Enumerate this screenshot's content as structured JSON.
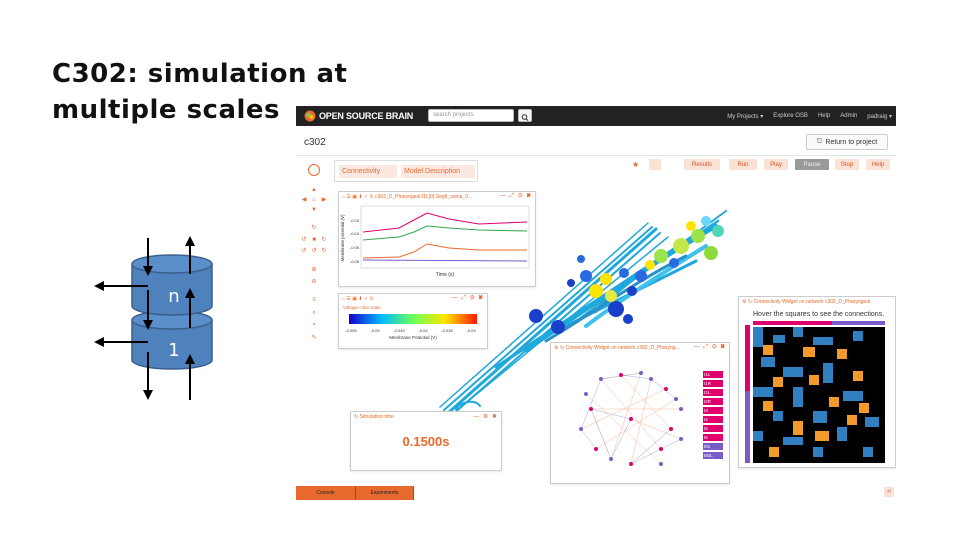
{
  "slide": {
    "title_line1": "C302: simulation at",
    "title_line2": "multiple scales",
    "diagram_labels": [
      "n",
      "1"
    ]
  },
  "app": {
    "brand": "OPEN SOURCE BRAIN",
    "search_placeholder": "search projects",
    "nav": [
      "My Projects ▾",
      "Explore OSB",
      "Help",
      "Admin",
      "padraig ▾"
    ],
    "project_title": "c302",
    "return_button": "Return to project",
    "tabs": [
      "Connectivity",
      "Model Description"
    ],
    "toolbar": {
      "results": "Results",
      "run": "Run",
      "play": "Play",
      "pause": "Pause",
      "stop": "Stop",
      "help": "Help"
    }
  },
  "plot_panel": {
    "title": "c302_D_Pharyngeal.I1L[0].SegII_soma_0...",
    "ylabel": "Membrane potential (V)",
    "xlabel": "Time (s)",
    "yticks": [
      "-0.03",
      "-0.04",
      "-0.05",
      "-0.06"
    ]
  },
  "color_scale_panel": {
    "title": "Voltage color scale",
    "ticks": [
      "-0.055",
      "-0.05",
      "-0.045",
      "-0.04",
      "-0.035",
      "-0.03"
    ],
    "label": "Membrane Potential (V)"
  },
  "sim_time_panel": {
    "title": "Simulation time",
    "value": "0.1500s"
  },
  "conn_graph_panel": {
    "title": "Connectivity Widget on network c302_D_Pharyng...",
    "legend": [
      "I1L",
      "I1R",
      "I2L",
      "I2R",
      "I3",
      "I4",
      "I5",
      "I6",
      "M1",
      "M2L"
    ]
  },
  "conn_matrix_panel": {
    "title": "Connectivity Widget on network c302_D_Pharyngeal",
    "subtitle": "Hover the squares to see the connections."
  },
  "bottom_tabs": [
    "Console",
    "Experiments"
  ],
  "colors": {
    "accent": "#e8692d",
    "topbar": "#222222",
    "cylinder": "#4f81bd"
  }
}
